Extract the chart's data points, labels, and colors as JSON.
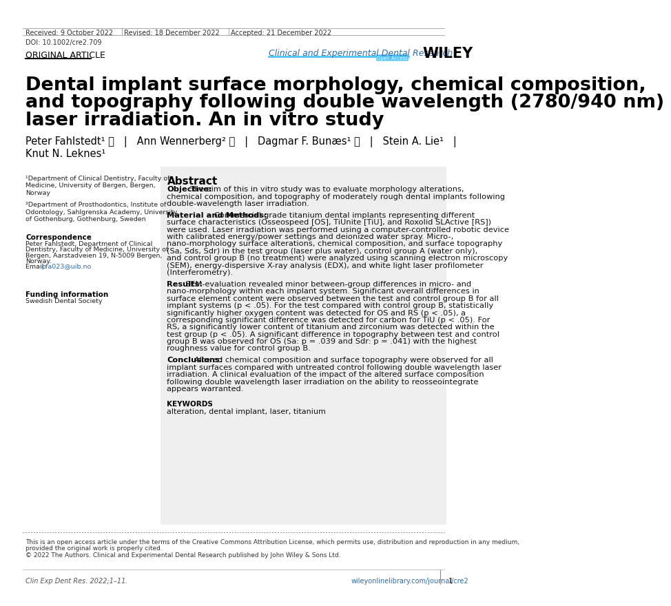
{
  "page_bg": "#ffffff",
  "header_received": "Received: 9 October 2022",
  "header_revised": "Revised: 18 December 2022",
  "header_accepted": "Accepted: 21 December 2022",
  "doi": "DOI: 10.1002/cre2.709",
  "section_label": "ORIGINAL ARTICLE",
  "journal_name": "Clinical and Experimental Dental Research",
  "journal_color": "#2e6da4",
  "open_access_label": "Open Access",
  "publisher": "WILEY",
  "title_line1": "Dental implant surface morphology, chemical composition,",
  "title_line2": "and topography following double wavelength (2780/940 nm)",
  "title_line3": "laser irradiation. An in vitro study",
  "authors_line1": "Peter Fahlstedt¹ ⓘ   |   Ann Wennerberg² ⓘ   |   Dagmar F. Bunæs¹ ⓘ   |   Stein A. Lie¹   |",
  "authors_line2": "Knut N. Leknes¹",
  "affil1": "¹Department of Clinical Dentistry, Faculty of\nMedicine, University of Bergen, Bergen,\nNorway",
  "affil2": "²Department of Prosthodontics, Institute of\nOdontology, Sahlgrenska Academy, University\nof Gothenburg, Gothenburg, Sweden",
  "correspondence_title": "Correspondence",
  "corr_line1": "Peter Fahlstedt, Department of Clinical",
  "corr_line2": "Dentistry, Faculty of Medicine, University of",
  "corr_line3": "Bergen, Aarstadveien 19, N-5009 Bergen,",
  "corr_line4": "Norway.",
  "corr_line5": "Email: ",
  "email": "pfa023@uib.no",
  "funding_title": "Funding information",
  "funding_text": "Swedish Dental Society",
  "abstract_title": "Abstract",
  "abstract_obj_label": "Objective:",
  "abstract_obj_text": " The aim of this in vitro study was to evaluate morphology alterations, chemical composition, and topography of moderately rough dental implants following double-wavelength laser irradiation.",
  "abstract_mm_label": "Material and Methods:",
  "abstract_mm_text": " Commercial-grade titanium dental implants representing different surface characteristics (Osseospeed [OS], TiUnite [TiU], and Roxolid SLActive [RS]) were used. Laser irradiation was performed using a computer-controlled robotic device with calibrated energy/power settings and deionized water spray. Micro-, nano-morphology surface alterations, chemical composition, and surface topography (Sa, Sds, Sdr) in the test group (laser plus water), control group A (water only), and control group B (no treatment) were analyzed using scanning electron microscopy (SEM), energy-dispersive X-ray analysis (EDX), and white light laser profilometer (Interferometry).",
  "abstract_res_label": "Results:",
  "abstract_res_text": " SEM-evaluation revealed minor between-group differences in micro- and nano-morphology within each implant system. Significant overall differences in surface element content were observed between the test and control group B for all implant systems (p < .05). For the test compared with control group B, statistically significantly higher oxygen content was detected for OS and RS (p < .05), a corresponding significant difference was detected for carbon for TiU (p < .05). For RS, a significantly lower content of titanium and zirconium was detected within the test group (p < .05). A significant difference in topography between test and control group B was observed for OS (Sa: p = .039 and Sdr: p = .041) with the highest roughness value for control group B.",
  "abstract_con_label": "Conclusions:",
  "abstract_con_text": " Altered chemical composition and surface topography were observed for all implant surfaces compared with untreated control following double wavelength laser irradiation. A clinical evaluation of the impact of the altered surface composition following double wavelength laser irradiation on the ability to reosseointegrate appears warranted.",
  "keywords_title": "KEYWORDS",
  "keywords_text": "alteration, dental implant, laser, titanium",
  "footer_oa_line1": "This is an open access article under the terms of the Creative Commons Attribution License, which permits use, distribution and reproduction in any medium,",
  "footer_oa_line2": "provided the original work is properly cited.",
  "footer_oa_line3": "© 2022 The Authors. Clinical and Experimental Dental Research published by John Wiley & Sons Ltd.",
  "footer_left": "Clin Exp Dent Res. 2022;1–11.",
  "footer_right": "wileyonlinelibrary.com/journal/cre2",
  "footer_page": "1",
  "abstract_bg": "#efefef",
  "header_text_color": "#222222",
  "title_color": "#000000",
  "body_color": "#111111"
}
